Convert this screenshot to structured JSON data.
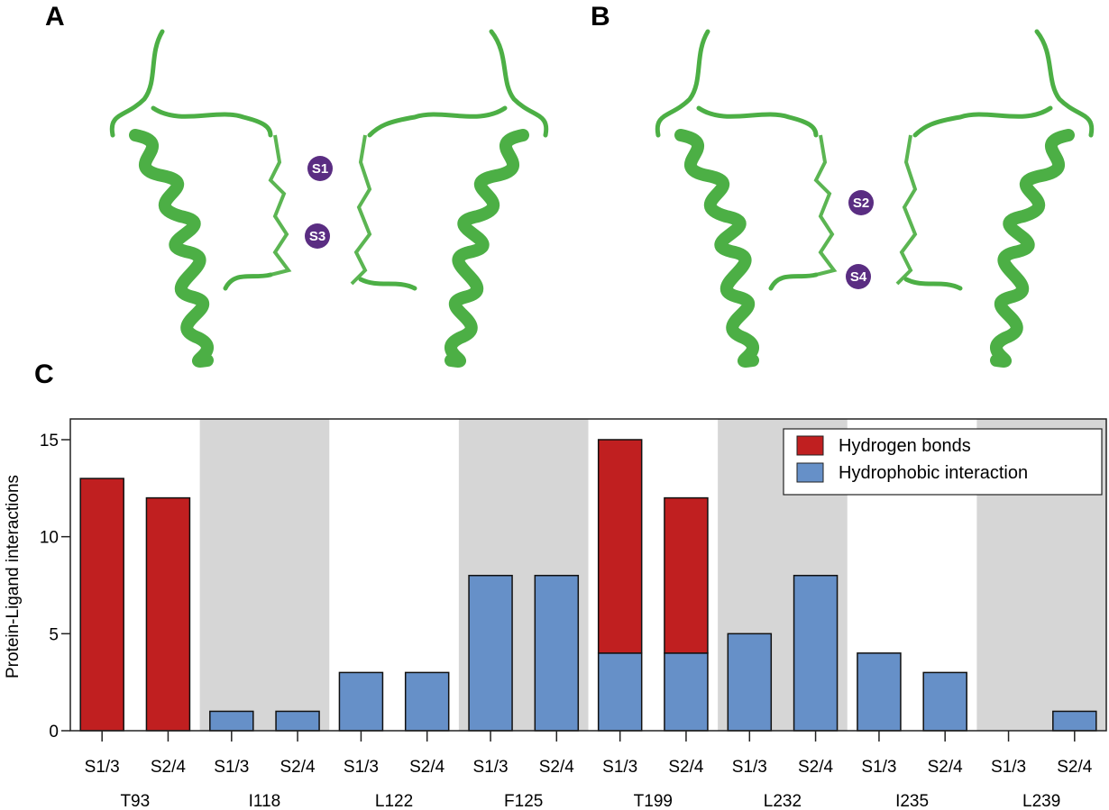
{
  "panels": {
    "a": {
      "letter": "A",
      "sites": [
        "S1",
        "S3"
      ]
    },
    "b": {
      "letter": "B",
      "sites": [
        "S2",
        "S4"
      ]
    },
    "c": {
      "letter": "C"
    }
  },
  "colors": {
    "hydrogen": "#c01f20",
    "hydrophobic": "#6690c8",
    "shade": "#d6d6d6",
    "protein": "#4caf45",
    "ion": "#5a2d82"
  },
  "chart_data": {
    "type": "bar",
    "stacked": true,
    "ylabel": "Protein-Ligand interactions",
    "ylim": [
      0,
      16
    ],
    "yticks": [
      "0",
      "5",
      "10",
      "15"
    ],
    "legend_position": "top-right",
    "groups": [
      "T93",
      "I118",
      "L122",
      "F125",
      "T199",
      "L232",
      "I235",
      "L239"
    ],
    "subcategories": [
      "S1/3",
      "S2/4"
    ],
    "series": [
      {
        "name": "Hydrophobic interaction",
        "color": "#6690c8",
        "values": [
          0,
          0,
          1,
          1,
          3,
          3,
          8,
          8,
          4,
          4,
          5,
          8,
          4,
          3,
          0,
          1
        ]
      },
      {
        "name": "Hydrogen bonds",
        "color": "#c01f20",
        "values": [
          13,
          12,
          0,
          0,
          0,
          0,
          0,
          0,
          11,
          8,
          0,
          0,
          0,
          0,
          0,
          0
        ]
      }
    ],
    "legend": [
      "Hydrogen bonds",
      "Hydrophobic interaction"
    ]
  }
}
